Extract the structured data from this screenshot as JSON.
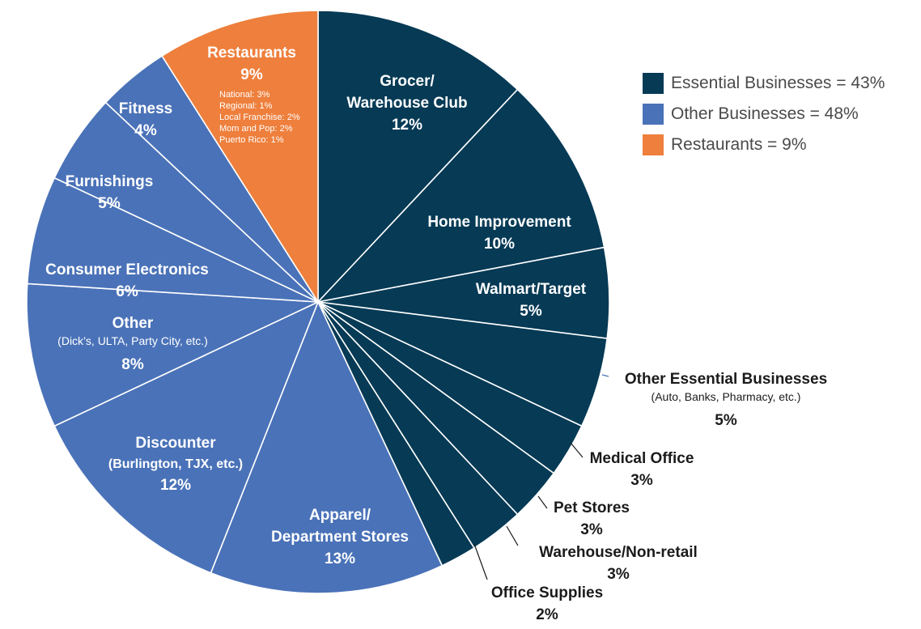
{
  "chart_data": {
    "type": "pie",
    "colors": {
      "essential": "#063a55",
      "other": "#4a72b8",
      "restaurants": "#ee7f3c"
    },
    "slices": [
      {
        "label": "Grocer/ Warehouse Club",
        "label_lines": [
          "Grocer/",
          "Warehouse Club"
        ],
        "value": 12,
        "value_text": "12%",
        "group": "essential"
      },
      {
        "label": "Home Improvement",
        "label_lines": [
          "Home Improvement"
        ],
        "value": 10,
        "value_text": "10%",
        "group": "essential"
      },
      {
        "label": "Walmart/Target",
        "label_lines": [
          "Walmart/Target"
        ],
        "value": 5,
        "value_text": "5%",
        "group": "essential"
      },
      {
        "label": "Other Essential Businesses",
        "label_lines": [
          "Other Essential Businesses"
        ],
        "sub_lines": [
          "(Auto, Banks, Pharmacy, etc.)"
        ],
        "value": 5,
        "value_text": "5%",
        "group": "essential"
      },
      {
        "label": "Medical Office",
        "label_lines": [
          "Medical Office"
        ],
        "value": 3,
        "value_text": "3%",
        "group": "essential"
      },
      {
        "label": "Pet Stores",
        "label_lines": [
          "Pet Stores"
        ],
        "value": 3,
        "value_text": "3%",
        "group": "essential"
      },
      {
        "label": "Warehouse/Non-retail",
        "label_lines": [
          "Warehouse/Non-retail"
        ],
        "value": 3,
        "value_text": "3%",
        "group": "essential"
      },
      {
        "label": "Office Supplies",
        "label_lines": [
          "Office Supplies"
        ],
        "value": 2,
        "value_text": "2%",
        "group": "essential"
      },
      {
        "label": "Apparel/ Department Stores",
        "label_lines": [
          "Apparel/",
          "Department Stores"
        ],
        "value": 13,
        "value_text": "13%",
        "group": "other"
      },
      {
        "label": "Discounter",
        "label_lines": [
          "Discounter",
          "(Burlington, TJX, etc.)"
        ],
        "value": 12,
        "value_text": "12%",
        "group": "other"
      },
      {
        "label": "Other",
        "label_lines": [
          "Other"
        ],
        "sub_lines": [
          "(Dick’s, ULTA, Party City, etc.)"
        ],
        "value": 8,
        "value_text": "8%",
        "group": "other"
      },
      {
        "label": "Consumer Electronics",
        "label_lines": [
          "Consumer Electronics"
        ],
        "value": 6,
        "value_text": "6%",
        "group": "other"
      },
      {
        "label": "Furnishings",
        "label_lines": [
          "Furnishings"
        ],
        "value": 5,
        "value_text": "5%",
        "group": "other"
      },
      {
        "label": "Fitness",
        "label_lines": [
          "Fitness"
        ],
        "value": 4,
        "value_text": "4%",
        "group": "other"
      },
      {
        "label": "Restaurants",
        "label_lines": [
          "Restaurants"
        ],
        "value": 9,
        "value_text": "9%",
        "group": "restaurants",
        "detail_lines": [
          "National: 3%",
          "Regional: 1%",
          "Local Franchise: 2%",
          "Mom and Pop: 2%",
          "Puerto Rico: 1%"
        ]
      }
    ],
    "legend": [
      {
        "text": "Essential Businesses = 43%",
        "group": "essential"
      },
      {
        "text": "Other Businesses = 48%",
        "group": "other"
      },
      {
        "text": "Restaurants = 9%",
        "group": "restaurants"
      }
    ],
    "legend_position": "top-right"
  }
}
